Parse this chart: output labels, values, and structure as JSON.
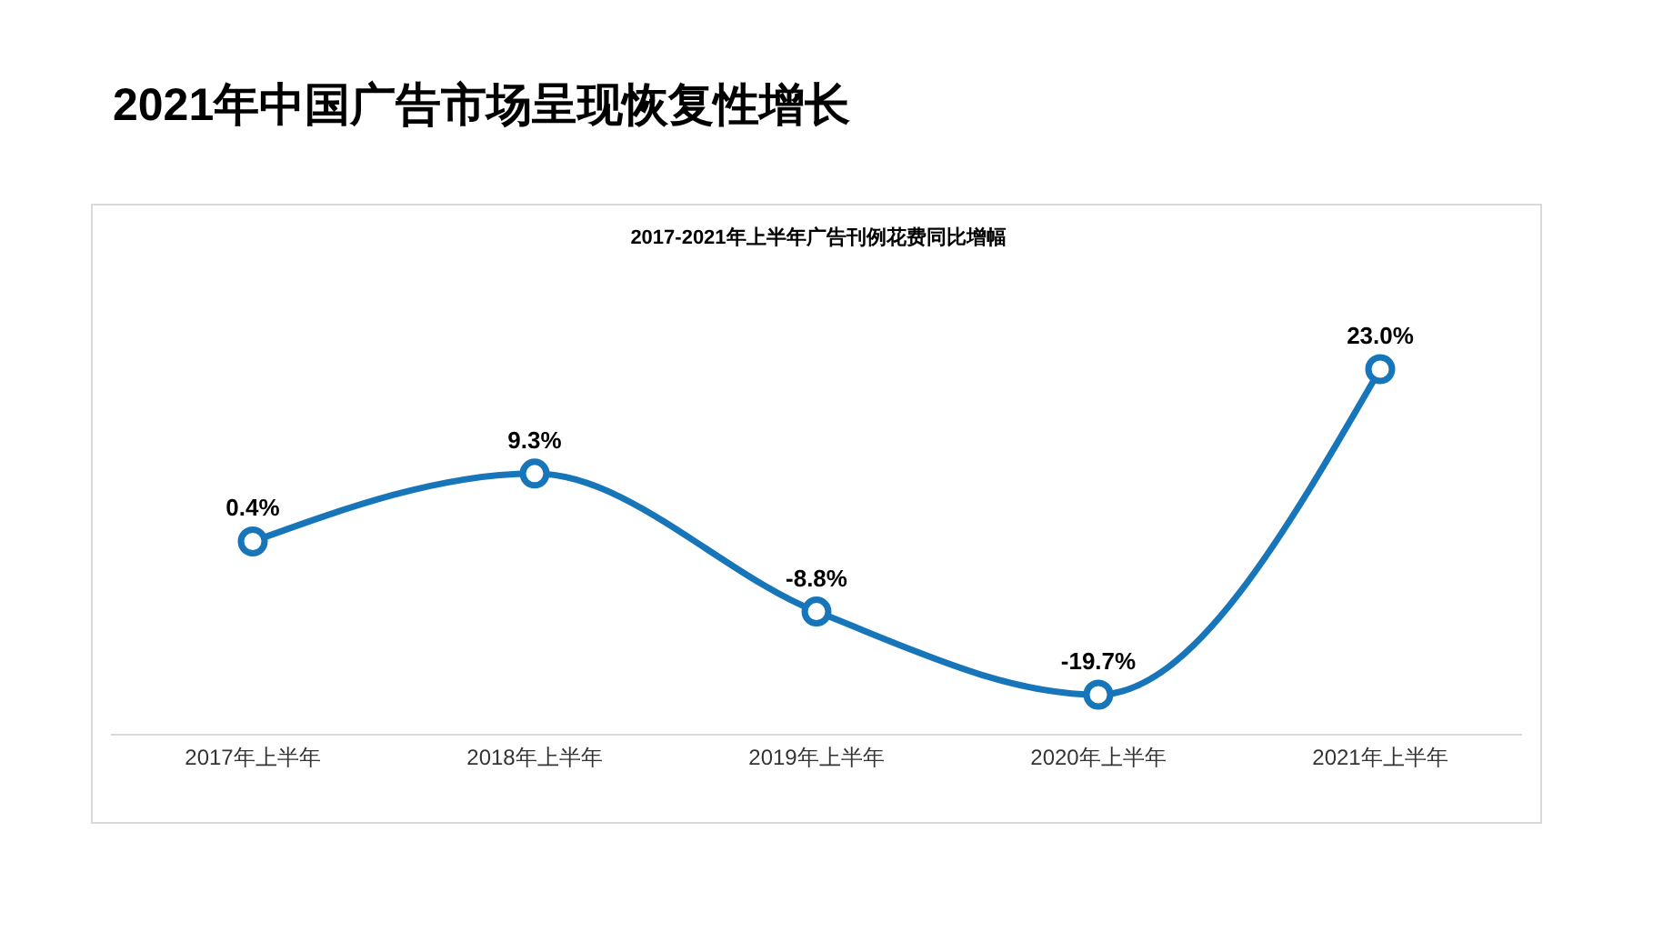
{
  "chart_data": {
    "type": "line",
    "title": "2021年中国广告市场呈现恢复性增长",
    "subtitle": "2017-2021年上半年广告刊例花费同比增幅",
    "categories": [
      "2017年上半年",
      "2018年上半年",
      "2019年上半年",
      "2020年上半年",
      "2021年上半年"
    ],
    "series": [
      {
        "color": "#1775b9",
        "values": [
          0.4,
          9.3,
          -8.8,
          -19.7,
          23.0
        ],
        "value_labels": [
          "0.4%",
          "9.3%",
          "-8.8%",
          "-19.7%",
          "23.0%"
        ]
      }
    ],
    "marker": "circle",
    "line_style": "solid",
    "tick_labels": "x"
  }
}
